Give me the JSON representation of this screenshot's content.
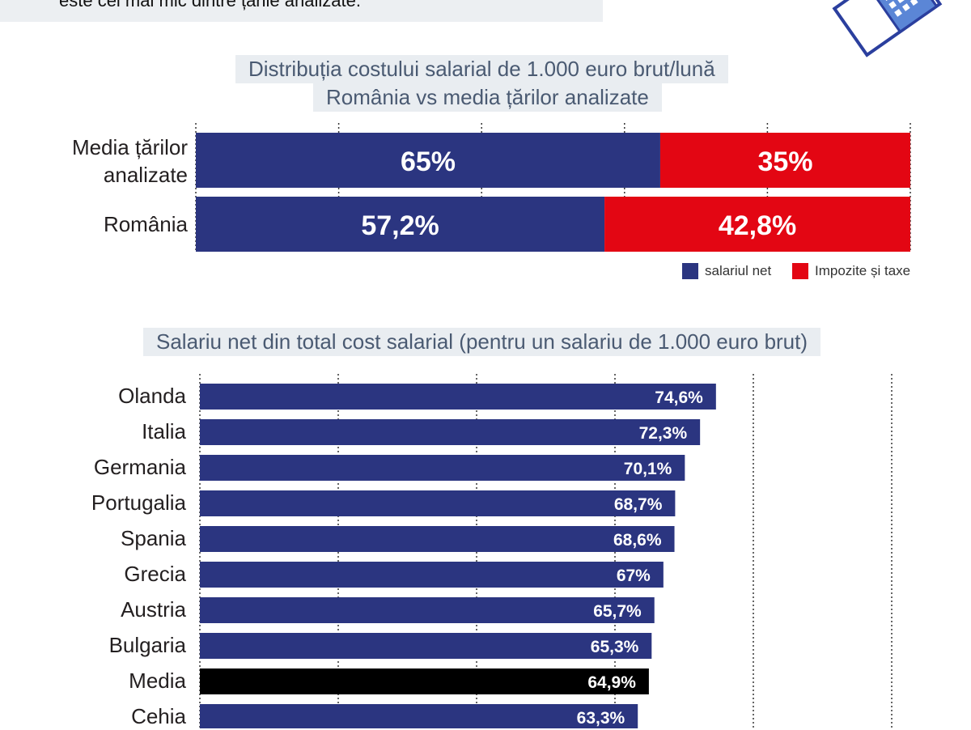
{
  "intro": {
    "text": "este cel mai mic dintre țările analizate."
  },
  "colors": {
    "net": "#2b3580",
    "tax": "#e30613",
    "media": "#000000"
  },
  "chart_data": [
    {
      "type": "bar",
      "stacked": true,
      "orientation": "horizontal",
      "title_line1": "Distribuția costului salarial de 1.000 euro brut/lună",
      "title_line2": "România vs media țărilor analizate",
      "categories": [
        "Media țărilor analizate",
        "România"
      ],
      "series": [
        {
          "name": "salariul net",
          "values": [
            65,
            57.2
          ],
          "labels": [
            "65%",
            "57,2%"
          ]
        },
        {
          "name": "Impozite și taxe",
          "values": [
            35,
            42.8
          ],
          "labels": [
            "35%",
            "42,8%"
          ]
        }
      ],
      "xlim": [
        0,
        100
      ],
      "grid": true,
      "legend": "bottom-right"
    },
    {
      "type": "bar",
      "orientation": "horizontal",
      "title": "Salariu net din total cost salarial (pentru un salariu de 1.000 euro brut)",
      "categories": [
        "Olanda",
        "Italia",
        "Germania",
        "Portugalia",
        "Spania",
        "Grecia",
        "Austria",
        "Bulgaria",
        "Media",
        "Cehia"
      ],
      "values": [
        74.6,
        72.3,
        70.1,
        68.7,
        68.6,
        67,
        65.7,
        65.3,
        64.9,
        63.3
      ],
      "labels": [
        "74,6%",
        "72,3%",
        "70,1%",
        "68,7%",
        "68,6%",
        "67%",
        "65,7%",
        "65,3%",
        "64,9%",
        "63,3%"
      ],
      "highlight": "Media",
      "xlim": [
        0,
        100
      ],
      "grid": true
    }
  ]
}
